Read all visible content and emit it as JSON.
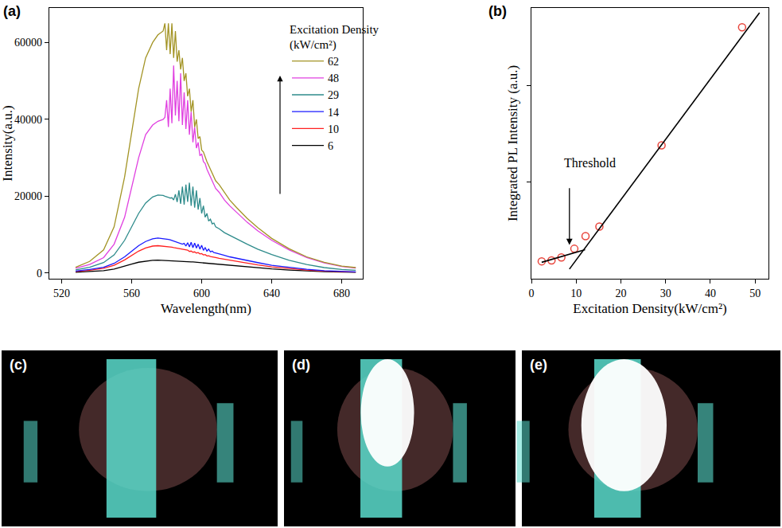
{
  "chart_data": [
    {
      "type": "line",
      "title": "(a)",
      "x_label": "Wavelength(nm)",
      "y_label": "Intensity(a.u.)",
      "legend_title": "Excitation Density (kW/cm²)",
      "legend": "top right",
      "grid": false,
      "xlim": [
        513,
        692
      ],
      "ylim": [
        -1500,
        69000
      ],
      "xticks": [
        520,
        560,
        600,
        640,
        680
      ],
      "yticks": [
        0,
        20000,
        40000,
        60000
      ],
      "x": [
        528,
        536,
        544,
        550,
        556,
        560,
        564,
        568,
        572,
        575,
        578,
        579,
        580,
        581,
        582,
        583,
        584,
        585,
        586,
        587,
        588,
        589,
        590,
        591,
        592,
        593,
        594,
        595,
        596,
        597,
        598,
        599,
        600,
        601,
        602,
        603,
        604,
        605,
        606,
        607,
        608,
        610,
        613,
        616,
        620,
        626,
        632,
        640,
        650,
        660,
        670,
        680,
        688
      ],
      "series": [
        {
          "name": "6",
          "color": "#000000",
          "values": [
            200,
            350,
            600,
            1000,
            1700,
            2300,
            2800,
            3100,
            3300,
            3350,
            3300,
            3290,
            3280,
            3260,
            3240,
            3220,
            3200,
            3180,
            3150,
            3120,
            3090,
            3060,
            3030,
            3000,
            2970,
            2930,
            2900,
            2860,
            2820,
            2780,
            2740,
            2700,
            2660,
            2620,
            2580,
            2540,
            2500,
            2460,
            2420,
            2380,
            2340,
            2260,
            2150,
            2030,
            1870,
            1600,
            1350,
            1050,
            750,
            500,
            330,
            220,
            170
          ]
        },
        {
          "name": "10",
          "color": "#ff2020",
          "values": [
            400,
            700,
            1200,
            2000,
            3400,
            4600,
            5700,
            6500,
            7000,
            7100,
            7000,
            6950,
            6900,
            6850,
            6750,
            6700,
            6600,
            6500,
            6450,
            6300,
            6250,
            6100,
            6050,
            5900,
            5950,
            5600,
            5700,
            5400,
            5500,
            5200,
            5300,
            4950,
            5050,
            4700,
            4800,
            4450,
            4500,
            4300,
            4250,
            4100,
            4000,
            3800,
            3550,
            3300,
            3000,
            2500,
            2100,
            1600,
            1100,
            750,
            480,
            320,
            240
          ]
        },
        {
          "name": "14",
          "color": "#1a1aff",
          "values": [
            500,
            900,
            1500,
            2500,
            4200,
            5700,
            7100,
            8200,
            8900,
            9100,
            9000,
            8950,
            8850,
            8750,
            8650,
            8500,
            8400,
            8200,
            8100,
            7900,
            7800,
            7500,
            7700,
            7000,
            7900,
            6800,
            8000,
            6600,
            7800,
            6500,
            7500,
            6200,
            7200,
            5900,
            6600,
            5700,
            6200,
            5500,
            5700,
            5300,
            5200,
            4900,
            4600,
            4200,
            3800,
            3200,
            2700,
            2000,
            1400,
            950,
            620,
            400,
            300
          ]
        },
        {
          "name": "29",
          "color": "#2e8b8b",
          "values": [
            800,
            1500,
            2700,
            4700,
            8500,
            12000,
            15500,
            18200,
            19800,
            20300,
            20200,
            20000,
            19900,
            19700,
            19500,
            19600,
            19000,
            20500,
            18500,
            21500,
            18000,
            22500,
            17800,
            23000,
            18500,
            23500,
            17500,
            22500,
            17000,
            21500,
            16500,
            19500,
            15500,
            17500,
            14500,
            15500,
            13500,
            14000,
            12800,
            13000,
            12000,
            11500,
            10500,
            9800,
            8800,
            7500,
            6200,
            4800,
            3300,
            2200,
            1400,
            900,
            700
          ]
        },
        {
          "name": "48",
          "color": "#e040e0",
          "values": [
            1200,
            2200,
            4000,
            7500,
            14500,
            22000,
            30000,
            36000,
            38500,
            39500,
            40000,
            40500,
            45000,
            38000,
            48000,
            39000,
            54000,
            41000,
            50000,
            39500,
            52000,
            38500,
            47000,
            37500,
            45000,
            36000,
            42000,
            34000,
            38000,
            32500,
            34000,
            30500,
            31000,
            29000,
            28500,
            27000,
            26000,
            25000,
            24000,
            23000,
            22000,
            21000,
            19000,
            17500,
            15800,
            13200,
            11000,
            8500,
            6000,
            4000,
            2600,
            1700,
            1300
          ]
        },
        {
          "name": "62",
          "color": "#a39425",
          "values": [
            1500,
            3000,
            6000,
            12000,
            25000,
            37000,
            48000,
            56000,
            60000,
            62000,
            63000,
            65000,
            58000,
            65000,
            57000,
            65000,
            56000,
            63000,
            55000,
            58000,
            53000,
            56000,
            50000,
            52000,
            46000,
            48000,
            42000,
            45000,
            38000,
            40000,
            35000,
            35500,
            32000,
            31500,
            30000,
            29000,
            28000,
            27000,
            26000,
            25000,
            24000,
            23000,
            21000,
            19000,
            17000,
            14200,
            11800,
            9000,
            6300,
            4200,
            2800,
            1800,
            1400
          ]
        }
      ]
    },
    {
      "type": "scatter",
      "title": "(b)",
      "x_label": "Excitation Density(kW/cm²)",
      "y_label": "Integrated PL Intensity (a.u.)",
      "tick_labels": "x",
      "grid": false,
      "xlim": [
        0,
        53
      ],
      "ylim": [
        0,
        2.8
      ],
      "xticks": [
        0,
        10,
        20,
        30,
        40,
        50
      ],
      "yticks": [
        1,
        2
      ],
      "annotations": [
        {
          "text": "Threshold",
          "x": 13,
          "y": 1.2,
          "arrow_x": 8.5,
          "arrow_y": 0.35
        }
      ],
      "series": [
        {
          "type": "scatter",
          "marker": "open circle",
          "color": "#e8453c",
          "x": [
            2.3,
            4.5,
            6.7,
            9.6,
            12.1,
            15.2,
            29.1,
            47.1
          ],
          "values": [
            0.18,
            0.19,
            0.22,
            0.31,
            0.44,
            0.54,
            1.38,
            2.6
          ]
        },
        {
          "type": "line",
          "color": "#000000",
          "x": [
            2.3,
            12
          ],
          "values": [
            0.17,
            0.3
          ]
        },
        {
          "type": "line",
          "color": "#000000",
          "x": [
            8.5,
            51
          ],
          "values": [
            0.1,
            2.75
          ]
        }
      ]
    }
  ],
  "images": [
    {
      "label": "(c)"
    },
    {
      "label": "(d)"
    },
    {
      "label": "(e)"
    }
  ]
}
